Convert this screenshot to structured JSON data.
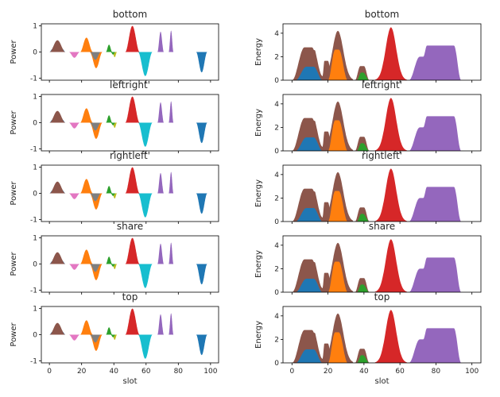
{
  "chart_data": {
    "type": "area",
    "layout": {
      "rows": 5,
      "cols": 2
    },
    "xlabel": "slot",
    "x_ticks": [
      0,
      20,
      40,
      60,
      80,
      100
    ],
    "xlim": [
      -5,
      105
    ],
    "columns": [
      {
        "ylabel": "Power",
        "ylim": [
          -1.08,
          1.08
        ],
        "y_ticks": [
          -1,
          0,
          1
        ]
      },
      {
        "ylabel": "Energy",
        "ylim": [
          0,
          4.8
        ],
        "y_ticks": [
          0,
          2,
          4
        ]
      }
    ],
    "row_titles": [
      "bottom",
      "leftright",
      "rightleft",
      "share",
      "top"
    ],
    "row_titles_display": [
      "bottom",
      "leftright'",
      "rightleft'",
      "share",
      "top"
    ],
    "power_series": [
      {
        "color": "#1f77b4",
        "fill_under": [
          0,
          10
        ],
        "level": 0.12
      },
      {
        "color": "#8c564b",
        "type": "bump",
        "range": [
          0,
          10
        ],
        "peak": 0.45
      },
      {
        "color": "#e377c2",
        "type": "bump",
        "range": [
          12,
          19
        ],
        "peak": -0.22
      },
      {
        "color": "#ff7f0e",
        "type": "bump",
        "range": [
          19,
          27
        ],
        "peak": 0.55
      },
      {
        "color": "#ff7f0e",
        "type": "bump",
        "range": [
          25,
          33
        ],
        "peak": -0.62
      },
      {
        "color": "#7f7f7f",
        "type": "bump",
        "range": [
          25,
          32
        ],
        "peak": -0.3
      },
      {
        "color": "#2ca02c",
        "type": "bump",
        "range": [
          35,
          39
        ],
        "peak": 0.28
      },
      {
        "color": "#bcbd22",
        "type": "bump",
        "range": [
          39,
          42
        ],
        "peak": -0.2
      },
      {
        "color": "#2ca02c",
        "type": "bump",
        "range": [
          38,
          41
        ],
        "peak": -0.1
      },
      {
        "color": "#d62728",
        "type": "bump",
        "range": [
          47,
          56
        ],
        "peak": 1.0
      },
      {
        "color": "#17becf",
        "type": "bump",
        "range": [
          55,
          64
        ],
        "peak": -0.92
      },
      {
        "color": "#9467bd",
        "type": "bump",
        "range": [
          67,
          71
        ],
        "peak": 0.78
      },
      {
        "color": "#9467bd",
        "type": "bump",
        "range": [
          74,
          77
        ],
        "peak": 0.82
      },
      {
        "color": "#1f77b4",
        "type": "bump",
        "range": [
          91,
          98
        ],
        "peak": -0.78
      }
    ],
    "energy_series": [
      {
        "name": "brown",
        "color": "#8c564b"
      },
      {
        "name": "blue",
        "color": "#1f77b4"
      },
      {
        "name": "orange",
        "color": "#ff7f0e"
      },
      {
        "name": "green",
        "color": "#2ca02c"
      },
      {
        "name": "red",
        "color": "#d62728"
      },
      {
        "name": "purple",
        "color": "#9467bd"
      }
    ]
  }
}
